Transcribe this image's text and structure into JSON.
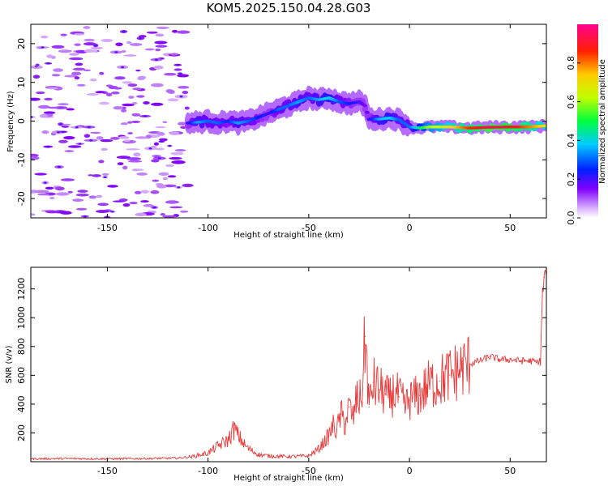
{
  "title": "KOM5.2025.150.04.28.G03",
  "colors": {
    "snr_line": "#e83a3a",
    "frame": "#000000",
    "background": "#ffffff"
  },
  "chart_data": [
    {
      "type": "heatmap",
      "xlabel": "Height of straight line (km)",
      "ylabel": "Frequency (Hz)",
      "xlim": [
        -188,
        68
      ],
      "ylim": [
        -25,
        25
      ],
      "xticks": [
        -150,
        -100,
        -50,
        0,
        50
      ],
      "yticks": [
        -20,
        -10,
        0,
        10,
        20
      ],
      "colorbar": {
        "label": "Normalized spectral amplitude",
        "range": [
          0,
          1
        ],
        "ticks": [
          0.0,
          0.2,
          0.4,
          0.6,
          0.8
        ],
        "tick_labels": [
          "0.0",
          "0.2",
          "0.4",
          "0.6",
          "0.8"
        ],
        "colormap": "rainbow (white-violet-blue-cyan-green-yellow-red-magenta)"
      },
      "ridge": {
        "x": [
          -110,
          -105,
          -100,
          -95,
          -90,
          -85,
          -80,
          -75,
          -70,
          -65,
          -60,
          -55,
          -50,
          -45,
          -40,
          -35,
          -30,
          -25,
          -22,
          -20,
          -15,
          -10,
          -5,
          0,
          5,
          10,
          20,
          30,
          40,
          50,
          60,
          68
        ],
        "frequency_hz": [
          -0.5,
          -0.3,
          0,
          -0.5,
          0,
          -0.5,
          0,
          1,
          2,
          3,
          4,
          5,
          6,
          5.5,
          6,
          5,
          4.5,
          5,
          4,
          0.5,
          0.5,
          0.8,
          0.3,
          -1.5,
          -1.8,
          -1.5,
          -1.5,
          -1.8,
          -1.6,
          -1.5,
          -1.5,
          -1.2
        ],
        "amplitude": [
          0.2,
          0.35,
          0.3,
          0.3,
          0.25,
          0.35,
          0.3,
          0.25,
          0.2,
          0.3,
          0.3,
          0.35,
          0.3,
          0.35,
          0.4,
          0.3,
          0.25,
          0.2,
          0.15,
          0.2,
          0.35,
          0.4,
          0.3,
          0.3,
          0.45,
          0.6,
          0.7,
          0.85,
          0.95,
          0.9,
          0.8,
          0.7
        ]
      },
      "noise_region_x": [
        -188,
        -110
      ],
      "noise_amplitude": 0.1
    },
    {
      "type": "line",
      "xlabel": "Height of straight line (km)",
      "ylabel": "SNR (v/v)",
      "xlim": [
        -188,
        68
      ],
      "ylim": [
        0,
        1350
      ],
      "xticks": [
        -150,
        -100,
        -50,
        0,
        50
      ],
      "yticks": [
        200,
        400,
        600,
        800,
        1000,
        1200
      ],
      "series": [
        {
          "x": [
            -188,
            -170,
            -150,
            -130,
            -115,
            -108,
            -100,
            -95,
            -90,
            -87,
            -85,
            -82,
            -80,
            -75,
            -70,
            -60,
            -50,
            -45,
            -40,
            -38,
            -36,
            -34,
            -32,
            -30,
            -28,
            -26,
            -24,
            -23,
            -22,
            -21,
            -20,
            -18,
            -15,
            -12,
            -10,
            -8,
            -5,
            -2,
            0,
            5,
            10,
            15,
            20,
            25,
            30,
            35,
            40,
            45,
            50,
            55,
            60,
            63,
            65,
            66,
            67,
            68
          ],
          "values": [
            20,
            22,
            20,
            22,
            25,
            35,
            60,
            110,
            150,
            230,
            180,
            120,
            90,
            50,
            40,
            35,
            40,
            90,
            180,
            250,
            220,
            330,
            260,
            380,
            300,
            450,
            420,
            600,
            870,
            650,
            380,
            550,
            500,
            470,
            430,
            480,
            450,
            380,
            430,
            460,
            540,
            560,
            600,
            640,
            680,
            700,
            730,
            710,
            710,
            700,
            700,
            690,
            700,
            1150,
            1280,
            1330
          ]
        }
      ]
    }
  ]
}
